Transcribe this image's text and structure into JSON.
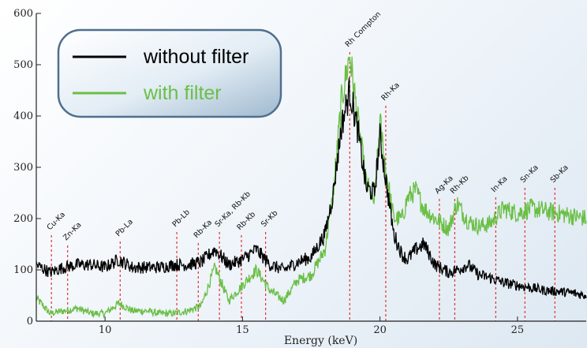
{
  "chart_data": {
    "type": "line",
    "title": "",
    "xlabel": "Energy (keV)",
    "ylabel": "",
    "xlim": [
      7.5,
      27.5
    ],
    "ylim": [
      0,
      600
    ],
    "x_ticks": [
      10,
      15,
      20,
      25
    ],
    "y_ticks": [
      0,
      100,
      200,
      300,
      400,
      500,
      600
    ],
    "grid": false,
    "legend": {
      "placement": "top-left",
      "entries": [
        {
          "name": "without filter",
          "color": "#000000"
        },
        {
          "name": "with filter",
          "color": "#6abf45"
        }
      ]
    },
    "series": [
      {
        "name": "without filter",
        "color": "#000000",
        "x": [
          7.5,
          8.0,
          8.5,
          9.0,
          9.5,
          10.0,
          10.5,
          11.0,
          11.5,
          12.0,
          12.5,
          13.0,
          13.5,
          14.0,
          14.5,
          15.0,
          15.5,
          16.0,
          16.5,
          17.0,
          17.5,
          18.0,
          18.3,
          18.6,
          18.9,
          19.2,
          19.5,
          19.8,
          20.0,
          20.2,
          20.5,
          20.8,
          21.0,
          21.3,
          21.6,
          22.0,
          22.5,
          22.8,
          23.2,
          23.6,
          24.0,
          24.5,
          25.0,
          25.5,
          26.0,
          26.5,
          27.0,
          27.5
        ],
        "y": [
          110,
          95,
          105,
          110,
          110,
          105,
          120,
          105,
          105,
          105,
          110,
          110,
          115,
          140,
          110,
          120,
          140,
          110,
          100,
          115,
          125,
          170,
          250,
          380,
          450,
          370,
          260,
          250,
          360,
          280,
          170,
          130,
          120,
          140,
          150,
          110,
          95,
          100,
          110,
          90,
          85,
          75,
          70,
          65,
          60,
          58,
          55,
          50
        ]
      },
      {
        "name": "with filter",
        "color": "#6abf45",
        "x": [
          7.5,
          8.0,
          8.5,
          9.0,
          9.5,
          10.0,
          10.5,
          11.0,
          11.5,
          12.0,
          12.5,
          13.0,
          13.5,
          14.0,
          14.5,
          15.0,
          15.5,
          16.0,
          16.5,
          17.0,
          17.5,
          18.0,
          18.3,
          18.6,
          18.9,
          19.2,
          19.5,
          19.8,
          20.0,
          20.2,
          20.5,
          20.8,
          21.0,
          21.3,
          21.6,
          22.0,
          22.5,
          22.8,
          23.2,
          23.6,
          24.0,
          24.5,
          25.0,
          25.5,
          26.0,
          26.5,
          27.0,
          27.5
        ],
        "y": [
          45,
          15,
          20,
          25,
          15,
          15,
          35,
          20,
          20,
          15,
          15,
          20,
          30,
          105,
          40,
          70,
          100,
          60,
          40,
          80,
          90,
          140,
          250,
          430,
          520,
          390,
          270,
          230,
          390,
          300,
          200,
          200,
          240,
          255,
          220,
          200,
          180,
          230,
          195,
          185,
          190,
          220,
          210,
          220,
          215,
          210,
          205,
          200
        ]
      }
    ],
    "annotations": [
      {
        "label": "Cu-Ka",
        "x": 8.05
      },
      {
        "label": "Zn-Ka",
        "x": 8.64
      },
      {
        "label": "Pb-La",
        "x": 10.55
      },
      {
        "label": "Pb-Lb",
        "x": 12.61
      },
      {
        "label": "Rb-Ka",
        "x": 13.39
      },
      {
        "label": "Sr-Ka, Rb-Kb",
        "x": 14.16
      },
      {
        "label": "Rb-Kb",
        "x": 14.96
      },
      {
        "label": "Sr-Kb",
        "x": 15.84
      },
      {
        "label": "Rh Compton",
        "x": 18.9
      },
      {
        "label": "Rh-Ka",
        "x": 20.21
      },
      {
        "label": "Ag-Ka",
        "x": 22.16
      },
      {
        "label": "Rh-Kb",
        "x": 22.72
      },
      {
        "label": "In-Ka",
        "x": 24.21
      },
      {
        "label": "Sn-Ka",
        "x": 25.27
      },
      {
        "label": "Sb-Ka",
        "x": 26.36
      }
    ]
  }
}
